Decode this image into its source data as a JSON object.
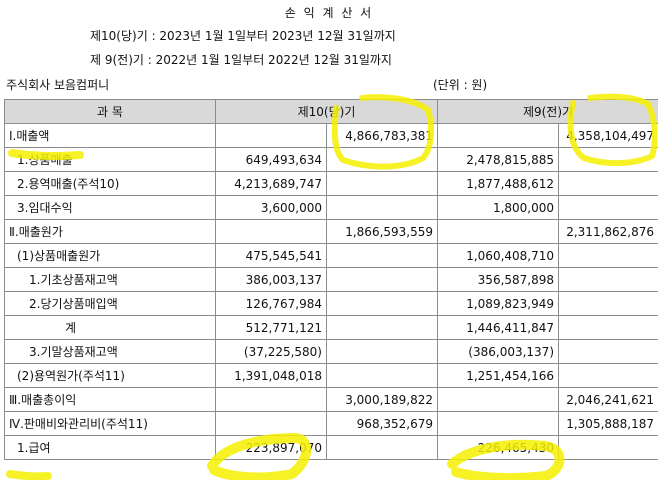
{
  "document": {
    "title": "손 익 계 산 서",
    "period_current": "제10(당)기 : 2023년 1월 1일부터 2023년 12월 31일까지",
    "period_prior": "제 9(전)기 : 2022년 1월 1일부터 2022년 12월 31일까지",
    "company": "주식회사 보음컴퍼니",
    "unit": "(단위 : 원)"
  },
  "table": {
    "header": {
      "account": "과          목",
      "current": "제10(당)기",
      "prior": "제9(전)기"
    },
    "rows": [
      {
        "label": "Ⅰ.매출액",
        "cur_detail": "",
        "cur_total": "4,866,783,381",
        "pri_detail": "",
        "pri_total": "4,358,104,497"
      },
      {
        "label": "1.상품매출",
        "cur_detail": "649,493,634",
        "cur_total": "",
        "pri_detail": "2,478,815,885",
        "pri_total": ""
      },
      {
        "label": "2.용역매출(주석10)",
        "cur_detail": "4,213,689,747",
        "cur_total": "",
        "pri_detail": "1,877,488,612",
        "pri_total": ""
      },
      {
        "label": "3.임대수익",
        "cur_detail": "3,600,000",
        "cur_total": "",
        "pri_detail": "1,800,000",
        "pri_total": ""
      },
      {
        "label": "Ⅱ.매출원가",
        "cur_detail": "",
        "cur_total": "1,866,593,559",
        "pri_detail": "",
        "pri_total": "2,311,862,876"
      },
      {
        "label": "(1)상품매출원가",
        "cur_detail": "475,545,541",
        "cur_total": "",
        "pri_detail": "1,060,408,710",
        "pri_total": ""
      },
      {
        "label": "1.기초상품재고액",
        "cur_detail": "386,003,137",
        "cur_total": "",
        "pri_detail": "356,587,898",
        "pri_total": ""
      },
      {
        "label": "2.당기상품매입액",
        "cur_detail": "126,767,984",
        "cur_total": "",
        "pri_detail": "1,089,823,949",
        "pri_total": ""
      },
      {
        "label": "계",
        "cur_detail": "512,771,121",
        "cur_total": "",
        "pri_detail": "1,446,411,847",
        "pri_total": ""
      },
      {
        "label": "3.기말상품재고액",
        "cur_detail": "(37,225,580)",
        "cur_total": "",
        "pri_detail": "(386,003,137)",
        "pri_total": ""
      },
      {
        "label": "(2)용역원가(주석11)",
        "cur_detail": "1,391,048,018",
        "cur_total": "",
        "pri_detail": "1,251,454,166",
        "pri_total": ""
      },
      {
        "label": "Ⅲ.매출총이익",
        "cur_detail": "",
        "cur_total": "3,000,189,822",
        "pri_detail": "",
        "pri_total": "2,046,241,621"
      },
      {
        "label": "Ⅳ.판매비와관리비(주석11)",
        "cur_detail": "",
        "cur_total": "968,352,679",
        "pri_detail": "",
        "pri_total": "1,305,888,187"
      },
      {
        "label": "1.급여",
        "cur_detail": "223,897,070",
        "cur_total": "",
        "pri_detail": "226,465,430",
        "pri_total": ""
      }
    ]
  },
  "highlight_color": "#f5f000"
}
